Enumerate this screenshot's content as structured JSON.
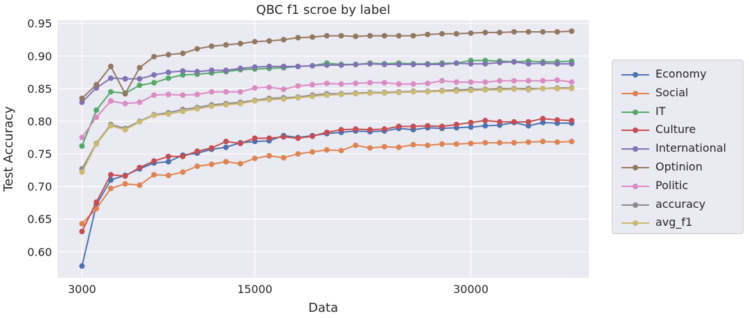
{
  "chart_data": {
    "type": "line",
    "title": "QBC f1 scroe by label",
    "xlabel": "Data",
    "ylabel": "Test Accuracy",
    "xlim": [
      1300,
      38200
    ],
    "ylim": [
      0.56,
      0.955
    ],
    "x_ticks": [
      3000,
      15000,
      30000
    ],
    "y_ticks": [
      0.6,
      0.65,
      0.7,
      0.75,
      0.8,
      0.85,
      0.9,
      0.95
    ],
    "x_tick_labels": [
      "3000",
      "15000",
      "30000"
    ],
    "y_tick_labels": [
      "0.60",
      "0.65",
      "0.70",
      "0.75",
      "0.80",
      "0.85",
      "0.90",
      "0.95"
    ],
    "grid": true,
    "legend_position": "outside-right",
    "x": [
      3000,
      4000,
      5000,
      6000,
      7000,
      8000,
      9000,
      10000,
      11000,
      12000,
      13000,
      14000,
      15000,
      16000,
      17000,
      18000,
      19000,
      20000,
      21000,
      22000,
      23000,
      24000,
      25000,
      26000,
      27000,
      28000,
      29000,
      30000,
      31000,
      32000,
      33000,
      34000,
      35000,
      36000,
      37000
    ],
    "series": [
      {
        "name": "Economy",
        "color": "#4c72b0",
        "values": [
          0.578,
          0.672,
          0.71,
          0.717,
          0.727,
          0.736,
          0.738,
          0.748,
          0.751,
          0.757,
          0.76,
          0.767,
          0.769,
          0.77,
          0.778,
          0.775,
          0.778,
          0.781,
          0.783,
          0.785,
          0.784,
          0.785,
          0.789,
          0.787,
          0.79,
          0.789,
          0.79,
          0.791,
          0.793,
          0.794,
          0.798,
          0.793,
          0.798,
          0.797,
          0.797
        ]
      },
      {
        "name": "Social",
        "color": "#dd8452",
        "values": [
          0.643,
          0.666,
          0.697,
          0.704,
          0.702,
          0.718,
          0.717,
          0.722,
          0.731,
          0.734,
          0.738,
          0.735,
          0.743,
          0.747,
          0.744,
          0.75,
          0.753,
          0.756,
          0.755,
          0.763,
          0.759,
          0.761,
          0.76,
          0.764,
          0.763,
          0.765,
          0.765,
          0.766,
          0.767,
          0.767,
          0.767,
          0.768,
          0.769,
          0.768,
          0.769
        ]
      },
      {
        "name": "IT",
        "color": "#55a868",
        "values": [
          0.762,
          0.817,
          0.845,
          0.843,
          0.855,
          0.859,
          0.866,
          0.871,
          0.872,
          0.874,
          0.876,
          0.879,
          0.88,
          0.881,
          0.882,
          0.884,
          0.885,
          0.889,
          0.887,
          0.887,
          0.889,
          0.888,
          0.889,
          0.888,
          0.888,
          0.889,
          0.889,
          0.893,
          0.893,
          0.892,
          0.891,
          0.892,
          0.891,
          0.891,
          0.892
        ]
      },
      {
        "name": "Culture",
        "color": "#c44e52",
        "values": [
          0.631,
          0.676,
          0.718,
          0.716,
          0.729,
          0.739,
          0.746,
          0.746,
          0.754,
          0.759,
          0.769,
          0.766,
          0.774,
          0.774,
          0.776,
          0.774,
          0.777,
          0.783,
          0.787,
          0.788,
          0.787,
          0.788,
          0.792,
          0.792,
          0.793,
          0.792,
          0.795,
          0.798,
          0.801,
          0.799,
          0.799,
          0.799,
          0.804,
          0.802,
          0.801
        ]
      },
      {
        "name": "International",
        "color": "#8172b3",
        "values": [
          0.829,
          0.851,
          0.866,
          0.865,
          0.865,
          0.871,
          0.875,
          0.877,
          0.876,
          0.878,
          0.878,
          0.881,
          0.883,
          0.884,
          0.884,
          0.884,
          0.885,
          0.886,
          0.886,
          0.887,
          0.888,
          0.887,
          0.887,
          0.887,
          0.887,
          0.887,
          0.889,
          0.888,
          0.888,
          0.89,
          0.891,
          0.888,
          0.889,
          0.888,
          0.888
        ]
      },
      {
        "name": "Optinion",
        "color": "#937860",
        "values": [
          0.835,
          0.856,
          0.884,
          0.842,
          0.882,
          0.899,
          0.902,
          0.904,
          0.911,
          0.915,
          0.917,
          0.919,
          0.922,
          0.923,
          0.925,
          0.928,
          0.929,
          0.931,
          0.931,
          0.93,
          0.931,
          0.931,
          0.931,
          0.931,
          0.933,
          0.934,
          0.934,
          0.935,
          0.936,
          0.936,
          0.937,
          0.937,
          0.937,
          0.937,
          0.938
        ]
      },
      {
        "name": "Politic",
        "color": "#da8bc3",
        "values": [
          0.775,
          0.806,
          0.831,
          0.827,
          0.829,
          0.84,
          0.841,
          0.84,
          0.841,
          0.845,
          0.845,
          0.845,
          0.851,
          0.852,
          0.849,
          0.854,
          0.856,
          0.858,
          0.857,
          0.858,
          0.859,
          0.859,
          0.857,
          0.857,
          0.858,
          0.862,
          0.86,
          0.86,
          0.86,
          0.862,
          0.862,
          0.862,
          0.862,
          0.863,
          0.86
        ]
      },
      {
        "name": "accuracy",
        "color": "#8c8c8c",
        "values": [
          0.727,
          0.766,
          0.795,
          0.789,
          0.8,
          0.81,
          0.813,
          0.818,
          0.821,
          0.825,
          0.827,
          0.829,
          0.832,
          0.835,
          0.836,
          0.837,
          0.84,
          0.842,
          0.842,
          0.843,
          0.844,
          0.844,
          0.845,
          0.846,
          0.846,
          0.847,
          0.848,
          0.849,
          0.849,
          0.85,
          0.85,
          0.85,
          0.85,
          0.851,
          0.851
        ]
      },
      {
        "name": "avg_f1",
        "color": "#ccb974",
        "values": [
          0.722,
          0.765,
          0.793,
          0.787,
          0.799,
          0.809,
          0.811,
          0.815,
          0.819,
          0.823,
          0.825,
          0.827,
          0.831,
          0.833,
          0.834,
          0.836,
          0.838,
          0.84,
          0.841,
          0.842,
          0.843,
          0.843,
          0.844,
          0.845,
          0.845,
          0.846,
          0.846,
          0.847,
          0.848,
          0.848,
          0.849,
          0.848,
          0.85,
          0.85,
          0.85
        ]
      }
    ]
  }
}
